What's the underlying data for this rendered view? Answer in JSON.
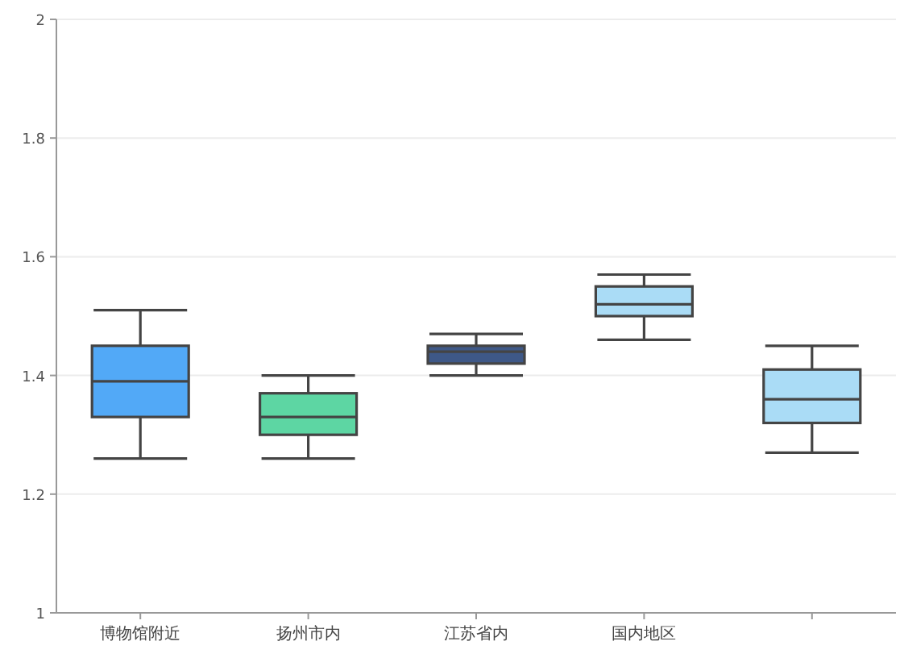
{
  "chart_data": {
    "type": "box",
    "categories": [
      "博物馆附近",
      "扬州市内",
      "江苏省内",
      "国内地区",
      null
    ],
    "colors": [
      "#52a9f7",
      "#5dd6a3",
      "#3e5887",
      "#aadcf6",
      "#aadcf6"
    ],
    "boxes": [
      {
        "low": 1.26,
        "q1": 1.33,
        "median": 1.39,
        "q3": 1.45,
        "high": 1.51
      },
      {
        "low": 1.26,
        "q1": 1.3,
        "median": 1.33,
        "q3": 1.37,
        "high": 1.4
      },
      {
        "low": 1.4,
        "q1": 1.42,
        "median": 1.44,
        "q3": 1.45,
        "high": 1.47
      },
      {
        "low": 1.46,
        "q1": 1.5,
        "median": 1.52,
        "q3": 1.55,
        "high": 1.57
      },
      {
        "low": 1.27,
        "q1": 1.32,
        "median": 1.36,
        "q3": 1.41,
        "high": 1.45
      }
    ],
    "ylim": [
      1,
      2
    ],
    "yticks": [
      1,
      1.2,
      1.4,
      1.6,
      1.8,
      2
    ],
    "grid": "y"
  }
}
